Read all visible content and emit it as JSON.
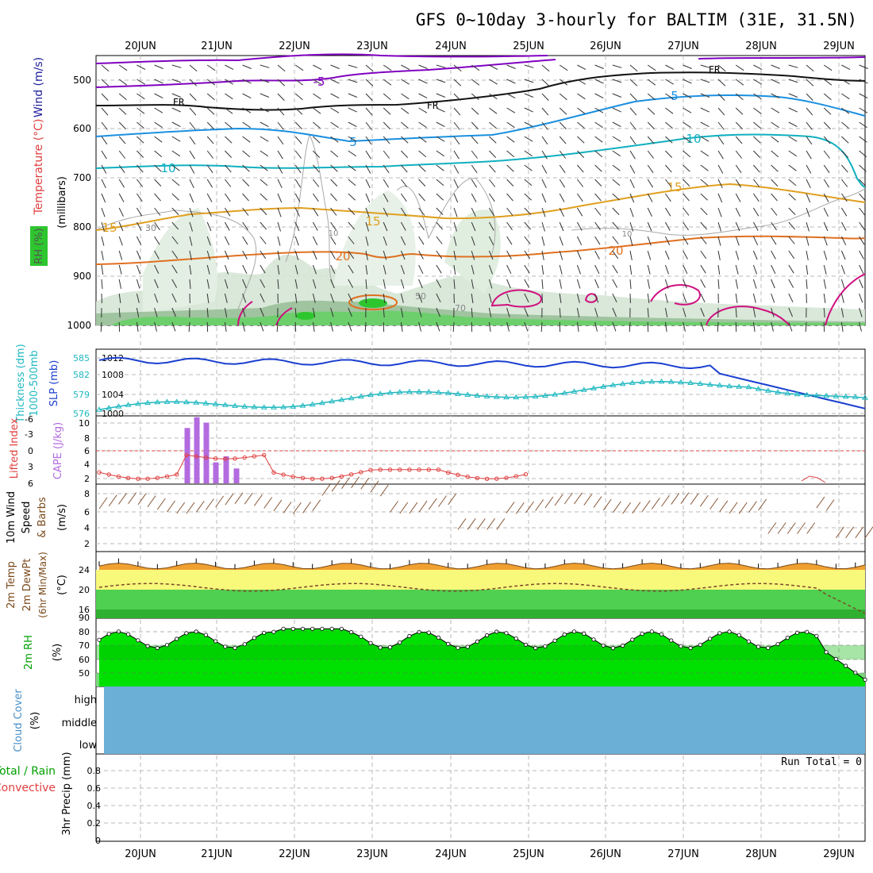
{
  "title": "GFS 0~10day 3-hourly for BALTIM (31E, 31.5N)",
  "dates": [
    "20JUN",
    "21JUN",
    "22JUN",
    "23JUN",
    "24JUN",
    "25JUN",
    "26JUN",
    "27JUN",
    "28JUN",
    "29JUN"
  ],
  "colors": {
    "grid": "#b8b8b8",
    "text": "#000000",
    "slp": "#1a3fd0",
    "thickness": "#1fb8c0",
    "cape": "#b36be0",
    "lifted": "#e04040",
    "wind10m": "#e89a3a",
    "barb10m": "#8a5a3a",
    "temp_fill": "#f0a030",
    "dew_line": "#7a4a2a",
    "rh_dark": "#00b400",
    "rh_light": "#00e000",
    "cloud": "#6baed6",
    "temp_purple": "#8000c0",
    "temp_blue": "#1a90e0",
    "temp_cyan": "#10b0c0",
    "temp_gold": "#e0a020",
    "temp_orange": "#e07020",
    "magenta": "#d01080"
  },
  "panels": {
    "upper": {
      "label_wind": "Wind (m/s)",
      "label_temp": "Temperature (°C)",
      "label_rh": "RH (%)",
      "label_mb": "(millibars)",
      "levels": [
        "500",
        "600",
        "700",
        "800",
        "900",
        "1000"
      ],
      "contour_labels": {
        "minus5": "-5",
        "fr": "FR",
        "p5": "5",
        "p10": "10",
        "p15": "15",
        "p20": "20",
        "rh30": "30",
        "rh10": "10",
        "rh50": "50",
        "rh70": "70"
      }
    },
    "slp": {
      "label_thick": "1000-500mb Thickness (dm)",
      "label_slp": "SLP (mb)",
      "left_ticks": [
        "585",
        "582",
        "579",
        "576"
      ],
      "right_ticks": [
        "1012",
        "1008",
        "1004",
        "1000"
      ]
    },
    "cape": {
      "label_li": "Lifted Index",
      "label_cape": "CAPE (J/kg)",
      "left_ticks": [
        "-6",
        "-3",
        "0",
        "3",
        "6"
      ],
      "right_ticks": [
        "10",
        "8",
        "6",
        "4",
        "2"
      ]
    },
    "wind10": {
      "label": "10m Wind Speed & Barbs",
      "unit": "(m/s)",
      "ticks": [
        "8",
        "6",
        "4",
        "2"
      ]
    },
    "temp2m": {
      "label": "2m Temp 2m DewPt (6hr Min/Max)",
      "unit": "(°C)",
      "ticks": [
        "24",
        "20",
        "16"
      ],
      "extra_tick": "90"
    },
    "rh2m": {
      "label": "2m RH",
      "unit": "(%)",
      "ticks": [
        "80",
        "70",
        "60",
        "50"
      ]
    },
    "cloud": {
      "label": "Cloud Cover",
      "unit": "(%)",
      "levels": [
        "high",
        "middle",
        "low"
      ]
    },
    "precip": {
      "label_total": "Total / Rain",
      "label_conv": "Convective",
      "unit": "3hr Precip (mm)",
      "ticks": [
        "0.8",
        "0.6",
        "0.4",
        "0.2",
        "0"
      ],
      "run_total": "Run Total = 0"
    }
  },
  "chart_data": {
    "type": "line",
    "x": [
      "20JUN",
      "21JUN",
      "22JUN",
      "23JUN",
      "24JUN",
      "25JUN",
      "26JUN",
      "27JUN",
      "28JUN",
      "29JUN"
    ],
    "series": [
      {
        "name": "SLP (mb)",
        "values": [
          1012.5,
          1010.5,
          1010.5,
          1010,
          1009.5,
          1010,
          1009.5,
          1009,
          1007,
          1001
        ]
      },
      {
        "name": "1000-500mb Thickness (dm)",
        "values": [
          576.5,
          577.5,
          576.8,
          576,
          577,
          578,
          580,
          582,
          582.5,
          580
        ]
      },
      {
        "name": "CAPE (J/kg)",
        "values": [
          0,
          10,
          0,
          0,
          0,
          0,
          0,
          0,
          0,
          0
        ]
      },
      {
        "name": "10m Wind Speed & Barbs",
        "values": [
          6,
          6,
          6,
          8,
          4,
          6,
          6,
          6,
          4,
          2
        ]
      },
      {
        "name": "2m Temp 2m DewPt (6hr Min/Max)",
        "values": [
          24,
          25,
          24,
          23,
          24,
          25,
          25,
          25,
          25,
          24
        ]
      },
      {
        "name": "2m RH",
        "values": [
          72,
          76,
          82,
          78,
          80,
          75,
          70,
          73,
          78,
          50
        ]
      }
    ],
    "precip_run_total": "Run Total = 0",
    "grid": true
  }
}
